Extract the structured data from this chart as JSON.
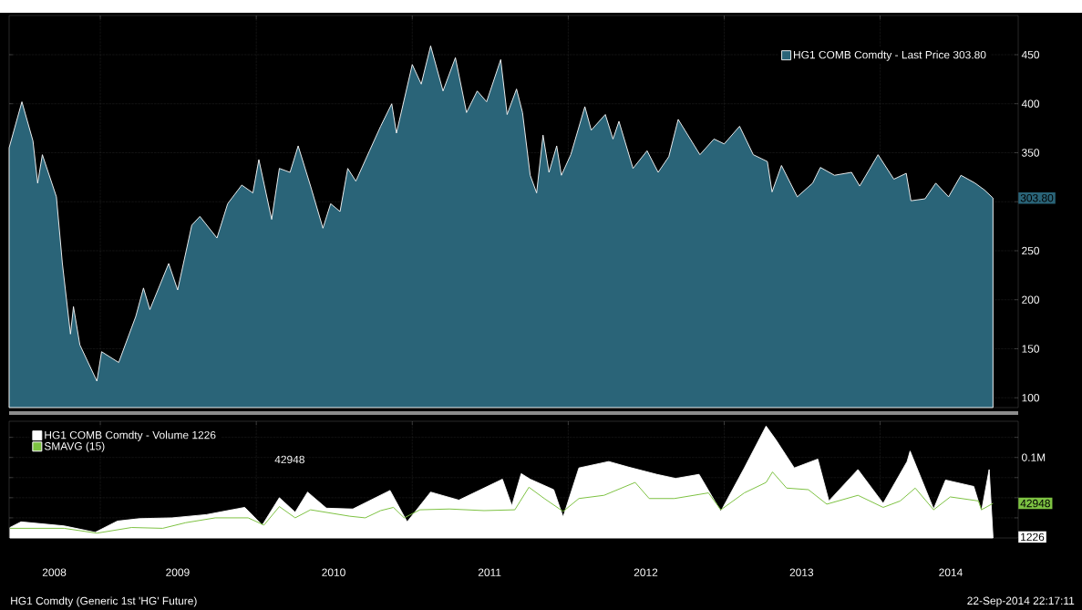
{
  "chart_data": [
    {
      "type": "area",
      "legend": "top right",
      "grid": true,
      "tick_labels": "y",
      "xlim": [
        "2008-06-01",
        "2014-11-20"
      ],
      "ylim": [
        90,
        490
      ],
      "xticks": [
        {
          "value": "2009-01-01",
          "label": null
        },
        {
          "value": "2010-01-01",
          "label": null
        },
        {
          "value": "2011-01-01",
          "label": null
        },
        {
          "value": "2012-01-01",
          "label": null
        },
        {
          "value": "2013-01-01",
          "label": null
        },
        {
          "value": "2014-01-01",
          "label": null
        }
      ],
      "yticks": [
        100,
        150,
        200,
        250,
        {
          "value": 300,
          "label": null
        },
        350,
        400,
        450
      ],
      "x": [
        "2008-06-01",
        "2008-07-01",
        "2008-07-27",
        "2008-08-07",
        "2008-08-18",
        "2008-09-20",
        "2008-10-04",
        "2008-10-23",
        "2008-10-30",
        "2008-11-14",
        "2008-12-24",
        "2009-01-04",
        "2009-02-13",
        "2009-03-25",
        "2009-04-12",
        "2009-04-27",
        "2009-06-10",
        "2009-07-01",
        "2009-08-03",
        "2009-08-22",
        "2009-10-01",
        "2009-10-26",
        "2009-11-28",
        "2009-12-24",
        "2010-01-07",
        "2010-02-06",
        "2010-02-24",
        "2010-03-21",
        "2010-04-09",
        "2010-05-08",
        "2010-06-06",
        "2010-06-24",
        "2010-07-16",
        "2010-08-03",
        "2010-08-22",
        "2010-09-23",
        "2010-10-19",
        "2010-11-14",
        "2010-11-25",
        "2011-01-01",
        "2011-01-22",
        "2011-02-13",
        "2011-03-14",
        "2011-04-12",
        "2011-05-08",
        "2011-06-02",
        "2011-06-24",
        "2011-07-27",
        "2011-08-11",
        "2011-09-02",
        "2011-09-16",
        "2011-10-04",
        "2011-10-19",
        "2011-11-03",
        "2011-11-17",
        "2011-12-05",
        "2011-12-16",
        "2012-01-07",
        "2012-02-09",
        "2012-02-24",
        "2012-03-28",
        "2012-04-15",
        "2012-04-29",
        "2012-06-01",
        "2012-07-04",
        "2012-07-30",
        "2012-08-24",
        "2012-09-15",
        "2012-11-05",
        "2012-12-08",
        "2013-01-01",
        "2013-02-06",
        "2013-03-10",
        "2013-04-12",
        "2013-04-23",
        "2013-05-15",
        "2013-06-21",
        "2013-07-27",
        "2013-08-14",
        "2013-09-16",
        "2013-10-26",
        "2013-11-14",
        "2013-12-27",
        "2014-02-02",
        "2014-03-03",
        "2014-03-14",
        "2014-04-16",
        "2014-05-11",
        "2014-06-10",
        "2014-07-09",
        "2014-08-11",
        "2014-09-02",
        "2014-09-22"
      ],
      "series": [
        {
          "name": "HG1 COMB Comdty - Last Price 303.80",
          "color": "#2a6478",
          "values": [
            355,
            402,
            362,
            319,
            348,
            305,
            237,
            165,
            193,
            154,
            117,
            147,
            136,
            183,
            212,
            190,
            237,
            210,
            276,
            285,
            263,
            298,
            317,
            309,
            343,
            282,
            334,
            330,
            357,
            316,
            273,
            298,
            290,
            334,
            321,
            352,
            377,
            400,
            370,
            440,
            420,
            459,
            413,
            447,
            391,
            413,
            402,
            445,
            389,
            415,
            391,
            327,
            309,
            368,
            330,
            357,
            327,
            348,
            397,
            373,
            389,
            364,
            382,
            334,
            352,
            330,
            346,
            384,
            348,
            364,
            359,
            377,
            348,
            341,
            310,
            337,
            305,
            319,
            335,
            327,
            330,
            316,
            348,
            323,
            329,
            301,
            303,
            319,
            305,
            327,
            319,
            312,
            303.8
          ]
        }
      ],
      "annotations": [
        {
          "text": "303.80",
          "x": "2014-09-22",
          "y": 303.8
        }
      ]
    },
    {
      "type": "area",
      "legend": "top left",
      "grid": true,
      "xlim": [
        "2008-06-01",
        "2014-11-20"
      ],
      "ylim": [
        0,
        145000
      ],
      "xticks": [
        {
          "value": "2009-01-01",
          "label": null
        },
        {
          "value": "2010-01-01",
          "label": null
        },
        {
          "value": "2011-01-01",
          "label": null
        },
        {
          "value": "2012-01-01",
          "label": null
        },
        {
          "value": "2013-01-01",
          "label": null
        },
        {
          "value": "2014-01-01",
          "label": null
        },
        {
          "value": "2008-09-15",
          "label": "2008"
        },
        {
          "value": "2009-07-01",
          "label": "2009"
        },
        {
          "value": "2010-07-01",
          "label": "2010"
        },
        {
          "value": "2011-07-01",
          "label": "2011"
        },
        {
          "value": "2012-07-01",
          "label": "2012"
        },
        {
          "value": "2013-07-01",
          "label": "2013"
        },
        {
          "value": "2014-06-15",
          "label": "2014"
        }
      ],
      "yticks": [
        {
          "value": 25000,
          "label": null
        },
        {
          "value": 50000,
          "label": null
        },
        {
          "value": 75000,
          "label": null
        },
        {
          "value": 100000,
          "label": "0.1M"
        },
        {
          "value": 125000,
          "label": null
        }
      ],
      "series": [
        {
          "name": "HG1 COMB Comdty - Volume 1226",
          "color": "#ffffff",
          "x": [
            "2008-06-03",
            "2008-06-29",
            "2008-10-08",
            "2008-12-20",
            "2009-02-10",
            "2009-04-02",
            "2009-06-18",
            "2009-09-06",
            "2009-12-05",
            "2010-01-15",
            "2010-02-24",
            "2010-04-02",
            "2010-05-01",
            "2010-06-14",
            "2010-08-15",
            "2010-11-10",
            "2010-12-20",
            "2011-02-13",
            "2011-04-20",
            "2011-07-31",
            "2011-08-22",
            "2011-09-13",
            "2011-10-04",
            "2011-11-28",
            "2011-12-20",
            "2012-01-26",
            "2012-04-05",
            "2012-05-22",
            "2012-07-27",
            "2012-09-09",
            "2012-11-03",
            "2012-12-24",
            "2013-02-17",
            "2013-04-09",
            "2013-05-02",
            "2013-06-14",
            "2013-08-08",
            "2013-09-03",
            "2013-11-10",
            "2014-01-08",
            "2014-03-05",
            "2014-03-12",
            "2014-05-06",
            "2014-06-03",
            "2014-08-08",
            "2014-08-26",
            "2014-09-13",
            "2014-09-22"
          ],
          "values": [
            13000,
            20000,
            15000,
            7000,
            21000,
            24000,
            25000,
            29000,
            38000,
            16000,
            50000,
            32000,
            57000,
            37000,
            36000,
            59000,
            20000,
            57000,
            47000,
            73000,
            40000,
            80000,
            73000,
            60000,
            26000,
            87000,
            95000,
            88000,
            79000,
            74000,
            79000,
            33000,
            87000,
            139000,
            122000,
            87000,
            98000,
            46000,
            85000,
            43000,
            95000,
            108000,
            36000,
            72000,
            64000,
            33000,
            85000,
            1226
          ]
        },
        {
          "name": "SMAVG (15)",
          "type": "line",
          "color": "#7dc242",
          "x": [
            "2008-06-03",
            "2008-10-08",
            "2008-12-24",
            "2009-03-15",
            "2009-05-27",
            "2009-07-20",
            "2009-09-27",
            "2009-12-13",
            "2010-01-19",
            "2010-02-24",
            "2010-04-02",
            "2010-05-08",
            "2010-08-08",
            "2010-09-13",
            "2010-10-19",
            "2010-11-18",
            "2010-12-13",
            "2011-01-19",
            "2011-03-29",
            "2011-06-18",
            "2011-08-29",
            "2011-10-01",
            "2011-11-06",
            "2011-12-20",
            "2012-01-26",
            "2012-03-25",
            "2012-06-06",
            "2012-07-09",
            "2012-09-06",
            "2012-11-25",
            "2012-12-24",
            "2013-02-17",
            "2013-04-09",
            "2013-04-24",
            "2013-05-27",
            "2013-07-17",
            "2013-08-29",
            "2013-11-10",
            "2014-01-08",
            "2014-02-17",
            "2014-03-24",
            "2014-05-06",
            "2014-06-14",
            "2014-08-19",
            "2014-08-26",
            "2014-09-22"
          ],
          "values": [
            12000,
            12000,
            6000,
            13000,
            12000,
            19000,
            25000,
            25000,
            16000,
            39000,
            25000,
            35000,
            27000,
            25000,
            34000,
            38000,
            25000,
            35000,
            36000,
            34000,
            35000,
            63000,
            49000,
            33000,
            49000,
            53000,
            69000,
            49000,
            49000,
            56000,
            35000,
            56000,
            69000,
            82000,
            62000,
            60000,
            42000,
            53000,
            38000,
            46000,
            62000,
            35000,
            51000,
            46000,
            35000,
            42948
          ]
        }
      ],
      "annotations": [
        {
          "text": "42948",
          "x": "2014-09-22",
          "y": 42948
        },
        {
          "text": "1226",
          "x": "2014-09-22",
          "y": 1226
        },
        "42948",
        "HG1 Comdty (Generic 1st 'HG' Future)",
        "22-Sep-2014 22:17:11"
      ]
    }
  ]
}
